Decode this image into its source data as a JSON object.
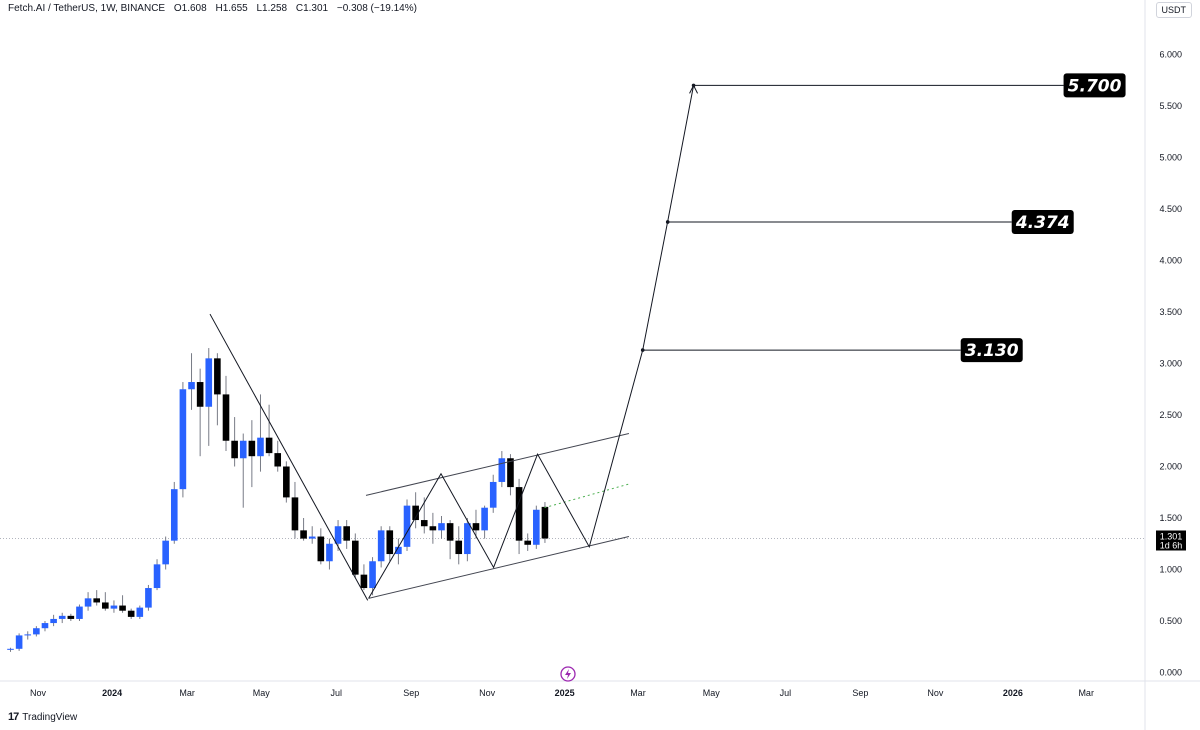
{
  "header": {
    "symbol": "Fetch.AI / TetherUS, 1W, BINANCE",
    "open": "O1.608",
    "high": "H1.655",
    "low": "L1.258",
    "close": "C1.301",
    "change": "−0.308 (−19.14%)"
  },
  "currency_label": "USDT",
  "branding": "TradingView",
  "last_price": {
    "value": "1.301",
    "countdown": "1d 6h"
  },
  "chart_data": {
    "type": "candlestick",
    "y_axis": {
      "min": 0,
      "max": 6.0,
      "ticks": [
        "0.000",
        "0.500",
        "1.000",
        "1.500",
        "2.000",
        "2.500",
        "3.000",
        "3.500",
        "4.000",
        "4.500",
        "5.000",
        "5.500",
        "6.000"
      ]
    },
    "x_axis": {
      "labels": [
        "Nov",
        "2024",
        "Mar",
        "May",
        "Jul",
        "Sep",
        "Nov",
        "2025",
        "Mar",
        "May",
        "Jul",
        "Sep",
        "Nov",
        "2026",
        "Mar"
      ],
      "label_weeks": [
        0,
        8.6,
        17.3,
        25.9,
        34.6,
        43.3,
        52.1,
        61.1,
        69.6,
        78.1,
        86.7,
        95.4,
        104.1,
        113.1,
        121.6
      ]
    },
    "candles": [
      [
        0.22,
        0.24,
        0.2,
        0.23
      ],
      [
        0.23,
        0.38,
        0.21,
        0.36
      ],
      [
        0.36,
        0.4,
        0.32,
        0.37
      ],
      [
        0.37,
        0.45,
        0.35,
        0.43
      ],
      [
        0.43,
        0.5,
        0.4,
        0.48
      ],
      [
        0.48,
        0.56,
        0.45,
        0.52
      ],
      [
        0.52,
        0.58,
        0.48,
        0.55
      ],
      [
        0.55,
        0.57,
        0.5,
        0.52
      ],
      [
        0.52,
        0.66,
        0.5,
        0.64
      ],
      [
        0.64,
        0.78,
        0.6,
        0.72
      ],
      [
        0.72,
        0.8,
        0.65,
        0.68
      ],
      [
        0.68,
        0.78,
        0.6,
        0.62
      ],
      [
        0.62,
        0.7,
        0.58,
        0.65
      ],
      [
        0.65,
        0.75,
        0.58,
        0.6
      ],
      [
        0.6,
        0.62,
        0.52,
        0.54
      ],
      [
        0.54,
        0.65,
        0.52,
        0.63
      ],
      [
        0.63,
        0.85,
        0.6,
        0.82
      ],
      [
        0.82,
        1.1,
        0.8,
        1.05
      ],
      [
        1.05,
        1.32,
        1.0,
        1.28
      ],
      [
        1.28,
        1.85,
        1.25,
        1.78
      ],
      [
        1.78,
        2.82,
        1.7,
        2.75
      ],
      [
        2.75,
        3.1,
        2.55,
        2.82
      ],
      [
        2.82,
        2.95,
        2.1,
        2.58
      ],
      [
        2.58,
        3.15,
        2.2,
        3.05
      ],
      [
        3.05,
        3.1,
        2.4,
        2.7
      ],
      [
        2.7,
        2.88,
        2.15,
        2.25
      ],
      [
        2.25,
        2.48,
        2.0,
        2.08
      ],
      [
        2.08,
        2.32,
        1.6,
        2.25
      ],
      [
        2.25,
        2.45,
        1.8,
        2.1
      ],
      [
        2.1,
        2.7,
        1.95,
        2.28
      ],
      [
        2.28,
        2.6,
        2.1,
        2.13
      ],
      [
        2.13,
        2.25,
        1.95,
        2.0
      ],
      [
        2.0,
        2.05,
        1.65,
        1.7
      ],
      [
        1.7,
        1.85,
        1.3,
        1.38
      ],
      [
        1.38,
        1.5,
        1.28,
        1.3
      ],
      [
        1.3,
        1.42,
        1.25,
        1.32
      ],
      [
        1.32,
        1.4,
        1.05,
        1.08
      ],
      [
        1.08,
        1.3,
        1.0,
        1.25
      ],
      [
        1.25,
        1.48,
        1.18,
        1.42
      ],
      [
        1.42,
        1.48,
        1.2,
        1.28
      ],
      [
        1.28,
        1.35,
        0.92,
        0.95
      ],
      [
        0.95,
        1.05,
        0.8,
        0.82
      ],
      [
        0.82,
        1.12,
        0.75,
        1.08
      ],
      [
        1.08,
        1.42,
        1.02,
        1.38
      ],
      [
        1.38,
        1.42,
        1.08,
        1.15
      ],
      [
        1.15,
        1.3,
        1.05,
        1.22
      ],
      [
        1.22,
        1.68,
        1.18,
        1.62
      ],
      [
        1.62,
        1.75,
        1.4,
        1.48
      ],
      [
        1.48,
        1.7,
        1.35,
        1.42
      ],
      [
        1.42,
        1.55,
        1.25,
        1.38
      ],
      [
        1.38,
        1.52,
        1.3,
        1.45
      ],
      [
        1.45,
        1.48,
        1.1,
        1.28
      ],
      [
        1.28,
        1.42,
        1.05,
        1.15
      ],
      [
        1.15,
        1.5,
        1.08,
        1.45
      ],
      [
        1.45,
        1.58,
        1.3,
        1.38
      ],
      [
        1.38,
        1.62,
        1.3,
        1.6
      ],
      [
        1.6,
        1.92,
        1.55,
        1.85
      ],
      [
        1.85,
        2.15,
        1.8,
        2.08
      ],
      [
        2.08,
        2.12,
        1.72,
        1.8
      ],
      [
        1.8,
        1.88,
        1.15,
        1.28
      ],
      [
        1.28,
        1.35,
        1.18,
        1.24
      ],
      [
        1.24,
        1.62,
        1.2,
        1.58
      ],
      [
        1.608,
        1.655,
        1.258,
        1.301
      ]
    ],
    "trendlines": [
      {
        "name": "descending-trendline",
        "points": [
          [
            23.2,
            3.48
          ],
          [
            41.5,
            0.7
          ]
        ]
      },
      {
        "name": "channel-upper",
        "points": [
          [
            41.3,
            1.72
          ],
          [
            71.8,
            2.32
          ]
        ]
      },
      {
        "name": "channel-lower",
        "points": [
          [
            41.6,
            0.72
          ],
          [
            71.8,
            1.32
          ]
        ]
      },
      {
        "name": "channel-mid",
        "points": [
          [
            62.0,
            1.6
          ],
          [
            71.8,
            1.83
          ]
        ]
      },
      {
        "name": "price-path",
        "points": [
          [
            41.6,
            0.72
          ],
          [
            50.0,
            1.93
          ],
          [
            56.1,
            1.02
          ],
          [
            61.2,
            2.12
          ],
          [
            67.2,
            1.22
          ],
          [
            73.4,
            3.13
          ],
          [
            76.3,
            4.38
          ],
          [
            79.3,
            5.7
          ]
        ]
      }
    ],
    "targets": [
      {
        "value": 3.13,
        "label": "3.130",
        "from_week": 73.4
      },
      {
        "value": 4.374,
        "label": "4.374",
        "from_week": 76.3
      },
      {
        "value": 5.7,
        "label": "5.700",
        "from_week": 79.3
      }
    ],
    "last_price_line": 1.301,
    "colors": {
      "up": "#2962ff",
      "down": "#000000",
      "wick": "#787b86",
      "line": "#131722",
      "price_line": "#b2b5be",
      "label_bg": "#000000",
      "alert_icon": "#9c27b0"
    }
  }
}
